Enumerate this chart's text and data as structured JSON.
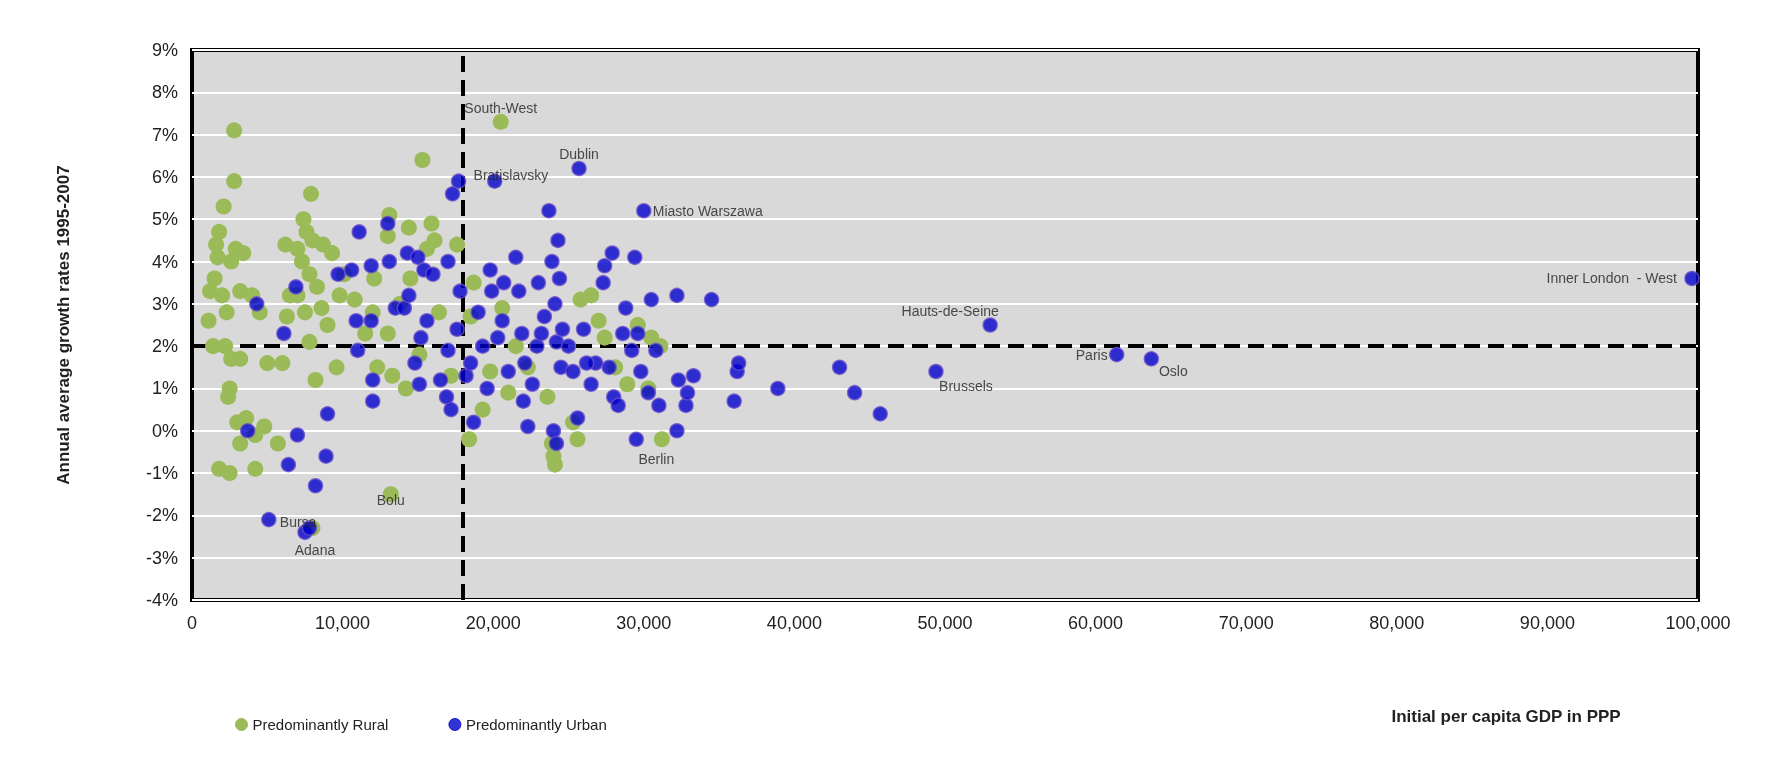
{
  "chart_data": {
    "type": "scatter",
    "ylabel": "Annual average growth rates 1995-2007",
    "xlabel": "Initial per capita GDP in PPP",
    "marker": "circle",
    "grid": "y",
    "legend": "bottom left",
    "xlim": [
      0,
      100000
    ],
    "xticks": [
      0,
      {
        "value": 10000,
        "label": "10,000"
      },
      {
        "value": 20000,
        "label": "20,000"
      },
      {
        "value": 30000,
        "label": "30,000"
      },
      {
        "value": 40000,
        "label": "40,000"
      },
      {
        "value": 50000,
        "label": "50,000"
      },
      {
        "value": 60000,
        "label": "60,000"
      },
      {
        "value": 70000,
        "label": "70,000"
      },
      {
        "value": 80000,
        "label": "80,000"
      },
      {
        "value": 90000,
        "label": "90,000"
      },
      {
        "value": 100000,
        "label": "100,000"
      }
    ],
    "ylim": [
      -4,
      9
    ],
    "yticks": [
      {
        "value": -4,
        "label": "-4%"
      },
      {
        "value": -3,
        "label": "-3%"
      },
      {
        "value": -2,
        "label": "-2%"
      },
      {
        "value": -1,
        "label": "-1%"
      },
      {
        "value": 0,
        "label": "0%"
      },
      {
        "value": 1,
        "label": "1%"
      },
      {
        "value": 2,
        "label": "2%"
      },
      {
        "value": 3,
        "label": "3%"
      },
      {
        "value": 4,
        "label": "4%"
      },
      {
        "value": 5,
        "label": "5%"
      },
      {
        "value": 6,
        "label": "6%"
      },
      {
        "value": 7,
        "label": "7%"
      },
      {
        "value": 8,
        "label": "8%"
      },
      {
        "value": 9,
        "label": "9%"
      }
    ],
    "ref_lines": [
      {
        "axis": "x",
        "value": 18000,
        "label": null,
        "color": "#000000",
        "line_style": "dashed"
      },
      {
        "axis": "y",
        "value": 2,
        "label": null,
        "color": "#000000",
        "line_style": "dashed"
      }
    ],
    "series": [
      {
        "name": "Predominantly Rural",
        "color": "#9bbb59",
        "x": [
          2800,
          2800,
          2100,
          1800,
          1600,
          2900,
          1700,
          3400,
          2600,
          1500,
          1200,
          2000,
          3200,
          4000,
          1100,
          2300,
          4500,
          1400,
          2200,
          2600,
          3200,
          5000,
          2500,
          2400,
          3600,
          3000,
          4800,
          3200,
          4200,
          5700,
          1800,
          2500,
          4200,
          6000,
          6300,
          6500,
          6200,
          7000,
          7400,
          7900,
          7600,
          8000,
          8700,
          7300,
          7800,
          8300,
          7000,
          7500,
          8600,
          7800,
          8200,
          9600,
          9000,
          9800,
          9300,
          10100,
          10800,
          11500,
          12000,
          12100,
          13000,
          13100,
          14400,
          15300,
          15900,
          15600,
          16100,
          17600,
          14500,
          13800,
          13000,
          12300,
          13300,
          14200,
          15100,
          16400,
          17200,
          13200,
          8000,
          18400,
          19300,
          19800,
          18700,
          18500,
          20600,
          21500,
          22300,
          21000,
          23600,
          24000,
          24100,
          23900,
          25300,
          25600,
          26500,
          25800,
          27000,
          27400,
          28100,
          28900,
          29600,
          30500,
          31100,
          31200,
          20500,
          30300
        ],
        "values": [
          7.1,
          5.9,
          5.3,
          4.7,
          4.4,
          4.3,
          4.1,
          4.2,
          4.0,
          3.6,
          3.3,
          3.2,
          3.3,
          3.2,
          2.6,
          2.8,
          2.8,
          2.0,
          2.0,
          1.7,
          1.7,
          1.6,
          1.0,
          0.8,
          0.3,
          0.2,
          0.1,
          -0.3,
          -0.1,
          -0.3,
          -0.9,
          -1.0,
          -0.9,
          1.6,
          2.7,
          3.2,
          4.4,
          4.3,
          5.0,
          5.6,
          4.7,
          4.5,
          4.4,
          4.0,
          3.7,
          3.4,
          3.2,
          2.8,
          2.9,
          2.1,
          1.2,
          1.5,
          2.5,
          3.2,
          4.2,
          3.7,
          3.1,
          2.3,
          2.8,
          3.6,
          4.6,
          5.1,
          4.8,
          6.4,
          4.9,
          4.3,
          4.5,
          4.4,
          3.6,
          3.0,
          2.3,
          1.5,
          1.3,
          1.0,
          1.8,
          2.8,
          1.3,
          -1.5,
          -2.3,
          -0.2,
          0.5,
          1.4,
          3.5,
          2.7,
          2.9,
          2.0,
          1.5,
          0.9,
          0.8,
          -0.6,
          -0.8,
          -0.3,
          0.2,
          -0.2,
          3.2,
          3.1,
          2.6,
          2.2,
          1.5,
          1.1,
          2.5,
          2.2,
          2.0,
          -0.2,
          7.3,
          1.0
        ]
      },
      {
        "name": "Predominantly Urban",
        "color": "#0000cc",
        "x": [
          5100,
          7500,
          7800,
          6400,
          7000,
          8200,
          8900,
          9000,
          3700,
          4300,
          6100,
          6900,
          9700,
          10600,
          11100,
          11900,
          10900,
          11000,
          11900,
          12000,
          12000,
          13000,
          13100,
          13500,
          14100,
          14400,
          14300,
          15000,
          15400,
          16000,
          15600,
          15200,
          14800,
          15100,
          16500,
          16900,
          17200,
          17000,
          17600,
          17800,
          17000,
          17300,
          17700,
          18200,
          18500,
          18700,
          19000,
          19300,
          19800,
          20100,
          19900,
          20700,
          20300,
          21000,
          21500,
          21700,
          21900,
          22100,
          22000,
          22300,
          22600,
          22900,
          23000,
          23400,
          23700,
          23900,
          24300,
          24100,
          24400,
          24200,
          24500,
          24000,
          24200,
          24600,
          25000,
          25300,
          25700,
          25600,
          26000,
          26500,
          26800,
          27400,
          27900,
          27300,
          27700,
          28000,
          28300,
          28600,
          28800,
          29400,
          29600,
          29500,
          29200,
          29800,
          30000,
          30300,
          30500,
          30800,
          31000,
          32200,
          32300,
          32200,
          32800,
          32900,
          33300,
          34500,
          36000,
          36200,
          36300,
          38900,
          43000,
          44000,
          45700,
          49400,
          53000,
          61400,
          63700,
          99600,
          20600,
          23200,
          26200,
          19600
        ],
        "values": [
          -2.1,
          -2.4,
          -2.3,
          -0.8,
          -0.1,
          -1.3,
          -0.6,
          0.4,
          0.0,
          3.0,
          2.3,
          3.4,
          3.7,
          3.8,
          4.7,
          3.9,
          2.6,
          1.9,
          2.6,
          1.2,
          0.7,
          4.9,
          4.0,
          2.9,
          2.9,
          3.2,
          4.2,
          4.1,
          3.8,
          3.7,
          2.6,
          2.2,
          1.6,
          1.1,
          1.2,
          0.8,
          0.5,
          1.9,
          2.4,
          3.3,
          4.0,
          5.6,
          5.9,
          1.3,
          1.6,
          0.2,
          2.8,
          2.0,
          3.8,
          5.9,
          3.3,
          3.5,
          2.2,
          1.4,
          4.1,
          3.3,
          2.3,
          1.6,
          0.7,
          0.1,
          1.1,
          2.0,
          3.5,
          2.7,
          5.2,
          4.0,
          4.5,
          3.0,
          3.6,
          2.1,
          1.5,
          0.0,
          -0.3,
          2.4,
          2.0,
          1.4,
          6.2,
          0.3,
          2.4,
          1.1,
          1.6,
          3.9,
          4.2,
          3.5,
          1.5,
          0.8,
          0.6,
          2.3,
          2.9,
          4.1,
          2.3,
          -0.2,
          1.9,
          1.4,
          5.2,
          0.9,
          3.1,
          1.9,
          0.6,
          3.2,
          1.2,
          0.0,
          0.6,
          0.9,
          1.3,
          3.1,
          0.7,
          1.4,
          1.6,
          1.0,
          1.5,
          0.9,
          0.4,
          1.4,
          2.5,
          1.8,
          1.7,
          3.6,
          2.6,
          2.3,
          1.6,
          1.0
        ]
      }
    ],
    "annotations": [
      {
        "text": "South-West",
        "x": 20500,
        "y": 7.3
      },
      {
        "text": "Dublin",
        "x": 25700,
        "y": 6.2
      },
      {
        "text": "Bratislavsky",
        "x": 17700,
        "y": 5.9
      },
      {
        "text": "Miasto Warszawa",
        "x": 30000,
        "y": 5.2
      },
      {
        "text": "Inner London  - West",
        "x": 99600,
        "y": 3.6
      },
      {
        "text": "Hauts-de-Seine",
        "x": 53000,
        "y": 2.5
      },
      {
        "text": "Paris",
        "x": 61400,
        "y": 1.8
      },
      {
        "text": "Oslo",
        "x": 63700,
        "y": 1.7
      },
      {
        "text": "Brussels",
        "x": 49400,
        "y": 1.4
      },
      {
        "text": "Berlin",
        "x": 29500,
        "y": -0.2
      },
      {
        "text": "Bolu",
        "x": 13200,
        "y": -1.5
      },
      {
        "text": "Bursa",
        "x": 5100,
        "y": -2.1
      },
      {
        "text": "Adana",
        "x": 7500,
        "y": -2.4
      }
    ]
  }
}
